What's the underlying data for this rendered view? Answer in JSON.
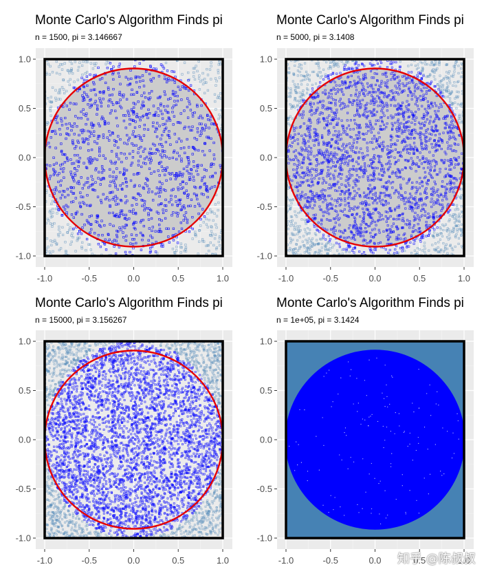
{
  "colors": {
    "panel_bg": "#ebebeb",
    "grid_major": "#ffffff",
    "circle_fill": "#cccccc",
    "circle_stroke": "#e60000",
    "square_stroke": "#000000",
    "inside_points": "#0000ff",
    "outside_points": "#4682b4"
  },
  "watermark": "知乎 @陈叔叔",
  "chart_data": [
    {
      "type": "scatter",
      "title": "Monte Carlo's Algorithm Finds pi",
      "subtitle": "n = 1500, pi = 3.146667",
      "n": 1500,
      "pi_estimate": 3.146667,
      "xlim": [
        -1.0,
        1.0
      ],
      "ylim": [
        -1.0,
        1.0
      ],
      "x_ticks": [
        "-1.0",
        "-0.5",
        "0.0",
        "0.5",
        "1.0"
      ],
      "y_ticks": [
        "1.0",
        "0.5",
        "0.0",
        "-0.5",
        "-1.0"
      ],
      "circle_filled": true,
      "xlabel": "",
      "ylabel": ""
    },
    {
      "type": "scatter",
      "title": "Monte Carlo's Algorithm Finds pi",
      "subtitle": "n = 5000, pi = 3.1408",
      "n": 5000,
      "pi_estimate": 3.1408,
      "xlim": [
        -1.0,
        1.0
      ],
      "ylim": [
        -1.0,
        1.0
      ],
      "x_ticks": [
        "-1.0",
        "-0.5",
        "0.0",
        "0.5",
        "1.0"
      ],
      "y_ticks": [
        "1.0",
        "0.5",
        "0.0",
        "-0.5",
        "-1.0"
      ],
      "circle_filled": true,
      "xlabel": "",
      "ylabel": ""
    },
    {
      "type": "scatter",
      "title": "Monte Carlo's Algorithm Finds pi",
      "subtitle": "n = 15000, pi = 3.156267",
      "n": 15000,
      "pi_estimate": 3.156267,
      "xlim": [
        -1.0,
        1.0
      ],
      "ylim": [
        -1.0,
        1.0
      ],
      "x_ticks": [
        "-1.0",
        "-0.5",
        "0.0",
        "0.5",
        "1.0"
      ],
      "y_ticks": [
        "1.0",
        "0.5",
        "0.0",
        "-0.5",
        "-1.0"
      ],
      "circle_filled": false,
      "xlabel": "",
      "ylabel": ""
    },
    {
      "type": "scatter",
      "title": "Monte Carlo's Algorithm Finds pi",
      "subtitle": "n = 1e+05, pi = 3.1424",
      "n": 100000,
      "pi_estimate": 3.1424,
      "xlim": [
        -1.0,
        1.0
      ],
      "ylim": [
        -1.0,
        1.0
      ],
      "x_ticks": [
        "-1.0",
        "-0.5",
        "0.0",
        "0.5",
        "1.0"
      ],
      "y_ticks": [
        "1.0",
        "0.5",
        "0.0",
        "-0.5",
        "-1.0"
      ],
      "circle_filled": false,
      "xlabel": "",
      "ylabel": ""
    }
  ]
}
